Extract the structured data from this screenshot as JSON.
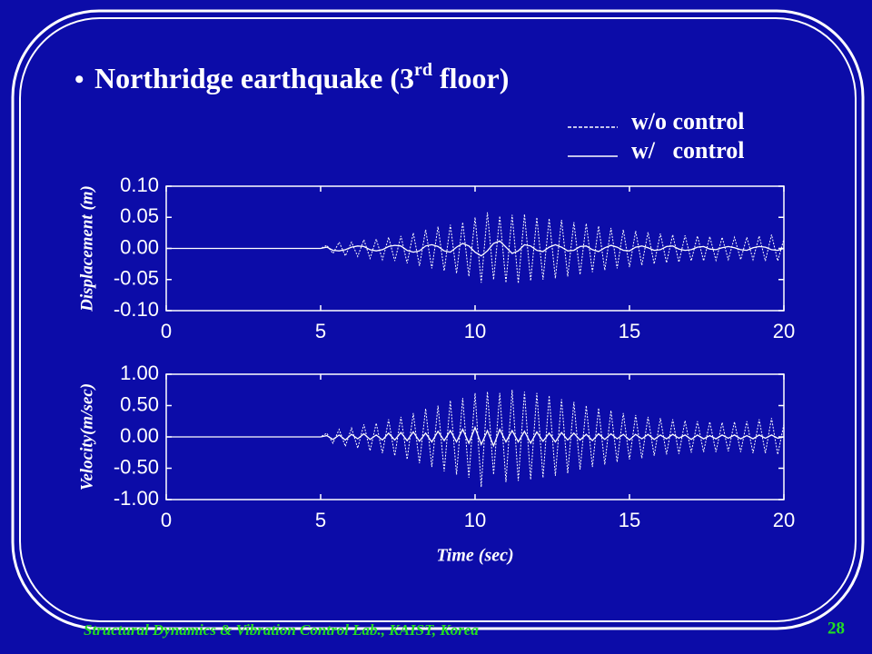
{
  "slide": {
    "title": "Northridge earthquake (3",
    "title_sup": "rd",
    "title_end": " floor)",
    "footer": "Structural Dynamics & Vibration Control Lab., KAIST, Korea",
    "page": "28"
  },
  "chart_data": [
    {
      "type": "line",
      "ylabel": "Displacement (m)",
      "x": [
        0,
        5,
        5.2,
        5.4,
        5.6,
        5.8,
        6,
        6.2,
        6.4,
        6.6,
        6.8,
        7,
        7.2,
        7.4,
        7.6,
        7.8,
        8,
        8.2,
        8.4,
        8.6,
        8.8,
        9,
        9.2,
        9.4,
        9.6,
        9.8,
        10,
        10.2,
        10.4,
        10.6,
        10.8,
        11,
        11.2,
        11.4,
        11.6,
        11.8,
        12,
        12.2,
        12.4,
        12.6,
        12.8,
        13,
        13.2,
        13.4,
        13.6,
        13.8,
        14,
        14.2,
        14.4,
        14.6,
        14.8,
        15,
        15.2,
        15.4,
        15.6,
        15.8,
        16,
        16.2,
        16.4,
        16.6,
        16.8,
        17,
        17.2,
        17.4,
        17.6,
        17.8,
        18,
        18.2,
        18.4,
        18.6,
        18.8,
        19,
        19.2,
        19.4,
        19.6,
        19.8,
        20
      ],
      "xlim": [
        0,
        20
      ],
      "xticks": [
        0,
        5,
        10,
        15,
        20
      ],
      "ylim": [
        -0.1,
        0.1
      ],
      "yticks": [
        {
          "value": 0.1,
          "label": "0.10"
        },
        {
          "value": 0.05,
          "label": "0.05"
        },
        {
          "value": 0,
          "label": "0.00"
        },
        {
          "value": -0.05,
          "label": "-0.05"
        },
        {
          "value": -0.1,
          "label": "-0.10"
        }
      ],
      "series": [
        {
          "name": "w/o control",
          "color": "#ffffff",
          "dashed": true,
          "values": [
            0,
            0,
            0.005,
            -0.008,
            0.01,
            -0.012,
            0.01,
            -0.013,
            0.014,
            -0.016,
            0.015,
            -0.018,
            0.018,
            -0.02,
            0.02,
            -0.024,
            0.025,
            -0.028,
            0.03,
            -0.032,
            0.035,
            -0.036,
            0.038,
            -0.04,
            0.042,
            -0.045,
            0.05,
            -0.055,
            0.058,
            -0.05,
            0.052,
            -0.055,
            0.054,
            -0.056,
            0.055,
            -0.052,
            0.05,
            -0.05,
            0.048,
            -0.048,
            0.046,
            -0.045,
            0.042,
            -0.042,
            0.04,
            -0.038,
            0.036,
            -0.035,
            0.033,
            -0.032,
            0.03,
            -0.03,
            0.028,
            -0.027,
            0.026,
            -0.025,
            0.024,
            -0.023,
            0.022,
            -0.022,
            0.021,
            -0.02,
            0.02,
            -0.02,
            0.019,
            -0.019,
            0.018,
            -0.018,
            0.018,
            -0.018,
            0.018,
            -0.018,
            0.02,
            -0.02,
            0.022,
            -0.02,
            0.015
          ]
        },
        {
          "name": "w/   control",
          "color": "#ffffff",
          "dashed": false,
          "values": [
            0,
            0,
            0.002,
            -0.003,
            -0.004,
            -0.002,
            0.002,
            0.004,
            0.003,
            -0.002,
            -0.004,
            -0.002,
            0.003,
            0.005,
            0.004,
            -0.003,
            -0.006,
            -0.004,
            0.004,
            0.006,
            0.003,
            -0.004,
            -0.006,
            0.002,
            0.008,
            0.004,
            -0.006,
            -0.012,
            -0.004,
            0.008,
            0.012,
            0.002,
            -0.008,
            -0.004,
            0.006,
            0.004,
            -0.003,
            -0.005,
            0.002,
            0.006,
            0.002,
            -0.004,
            -0.003,
            0.003,
            0.004,
            -0.002,
            -0.005,
            0.001,
            0.005,
            0.002,
            -0.003,
            -0.004,
            0.002,
            0.004,
            0.001,
            -0.003,
            -0.002,
            0.003,
            0.004,
            -0.001,
            -0.003,
            -0.002,
            0.002,
            0.003,
            -0.001,
            -0.002,
            0.001,
            0.003,
            0.001,
            -0.002,
            -0.003,
            0.001,
            0.003,
            0.002,
            -0.002,
            -0.003,
            0
          ]
        }
      ]
    },
    {
      "type": "line",
      "ylabel": "Velocity(m/sec)",
      "xlabel": "Time (sec)",
      "x": [
        0,
        5,
        5.2,
        5.4,
        5.6,
        5.8,
        6,
        6.2,
        6.4,
        6.6,
        6.8,
        7,
        7.2,
        7.4,
        7.6,
        7.8,
        8,
        8.2,
        8.4,
        8.6,
        8.8,
        9,
        9.2,
        9.4,
        9.6,
        9.8,
        10,
        10.2,
        10.4,
        10.6,
        10.8,
        11,
        11.2,
        11.4,
        11.6,
        11.8,
        12,
        12.2,
        12.4,
        12.6,
        12.8,
        13,
        13.2,
        13.4,
        13.6,
        13.8,
        14,
        14.2,
        14.4,
        14.6,
        14.8,
        15,
        15.2,
        15.4,
        15.6,
        15.8,
        16,
        16.2,
        16.4,
        16.6,
        16.8,
        17,
        17.2,
        17.4,
        17.6,
        17.8,
        18,
        18.2,
        18.4,
        18.6,
        18.8,
        19,
        19.2,
        19.4,
        19.6,
        19.8,
        20
      ],
      "xlim": [
        0,
        20
      ],
      "xticks": [
        0,
        5,
        10,
        15,
        20
      ],
      "ylim": [
        -1,
        1
      ],
      "yticks": [
        {
          "value": 1,
          "label": "1.00"
        },
        {
          "value": 0.5,
          "label": "0.50"
        },
        {
          "value": 0,
          "label": "0.00"
        },
        {
          "value": -0.5,
          "label": "-0.50"
        },
        {
          "value": -1,
          "label": "-1.00"
        }
      ],
      "series": [
        {
          "color": "#ffffff",
          "dashed": true,
          "values": [
            0,
            0,
            0.06,
            -0.1,
            0.12,
            -0.15,
            0.14,
            -0.18,
            0.2,
            -0.22,
            0.22,
            -0.26,
            0.28,
            -0.3,
            0.32,
            -0.36,
            0.38,
            -0.42,
            0.45,
            -0.48,
            0.5,
            -0.55,
            0.58,
            -0.6,
            0.62,
            -0.65,
            0.7,
            -0.8,
            0.72,
            -0.6,
            0.7,
            -0.72,
            0.75,
            -0.7,
            0.72,
            -0.68,
            0.7,
            -0.65,
            0.66,
            -0.62,
            0.6,
            -0.58,
            0.56,
            -0.52,
            0.5,
            -0.48,
            0.46,
            -0.44,
            0.42,
            -0.4,
            0.38,
            -0.36,
            0.35,
            -0.34,
            0.32,
            -0.3,
            0.3,
            -0.28,
            0.28,
            -0.27,
            0.26,
            -0.25,
            0.25,
            -0.24,
            0.24,
            -0.24,
            0.23,
            -0.23,
            0.24,
            -0.24,
            0.25,
            -0.26,
            0.28,
            -0.26,
            0.3,
            -0.28,
            0.2
          ]
        },
        {
          "color": "#ffffff",
          "dashed": false,
          "values": [
            0,
            0,
            0.02,
            -0.04,
            0.03,
            -0.05,
            0.04,
            -0.03,
            0.05,
            -0.04,
            0.03,
            -0.05,
            0.06,
            -0.05,
            0.07,
            -0.06,
            0.08,
            -0.07,
            0.06,
            -0.08,
            0.09,
            -0.06,
            0.1,
            -0.08,
            0.12,
            -0.1,
            0.15,
            -0.12,
            0.1,
            -0.14,
            0.12,
            -0.08,
            0.1,
            -0.08,
            0.09,
            -0.1,
            0.08,
            -0.07,
            0.06,
            -0.08,
            0.07,
            -0.05,
            0.06,
            -0.05,
            0.04,
            -0.06,
            0.05,
            -0.04,
            0.05,
            -0.03,
            0.04,
            -0.05,
            0.04,
            -0.03,
            0.04,
            -0.04,
            0.03,
            -0.03,
            0.04,
            -0.02,
            0.03,
            -0.04,
            0.03,
            -0.03,
            0.02,
            -0.03,
            0.03,
            -0.02,
            0.03,
            -0.03,
            0.02,
            -0.03,
            0.03,
            -0.02,
            0.03,
            -0.02,
            0
          ]
        }
      ]
    }
  ]
}
